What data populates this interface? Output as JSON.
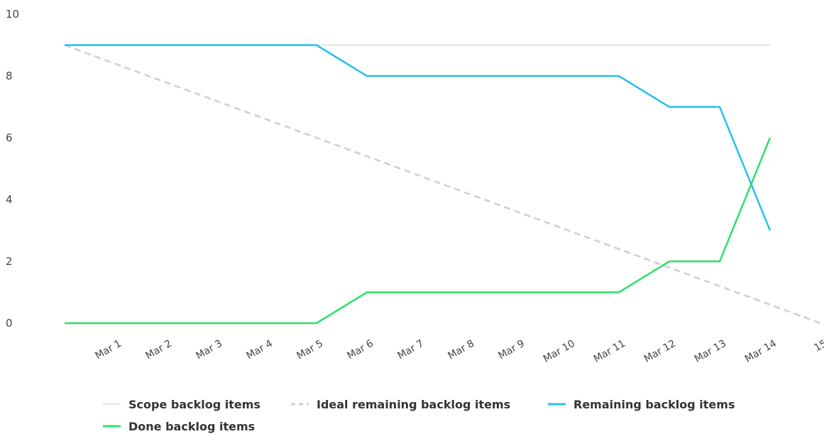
{
  "chart_data": {
    "type": "line",
    "title": "",
    "xlabel": "",
    "ylabel": "",
    "x_ticks": [
      "Mar 1",
      "Mar 2",
      "Mar 3",
      "Mar 4",
      "Mar 5",
      "Mar 6",
      "Mar 7",
      "Mar 8",
      "Mar 9",
      "Mar 10",
      "Mar 11",
      "Mar 12",
      "Mar 13",
      "Mar 14",
      "15"
    ],
    "y_ticks": [
      "0",
      "2",
      "4",
      "6",
      "8",
      "10"
    ],
    "ylim": [
      0,
      10
    ],
    "grid": false,
    "legend_position": "bottom",
    "series": [
      {
        "name": "Scope backlog items",
        "color": "#d9d9d9",
        "style": "solid",
        "x": [
          "Feb 29",
          "Mar 14"
        ],
        "values": [
          9,
          9
        ]
      },
      {
        "name": "Ideal remaining backlog items",
        "color": "#cfcfcf",
        "style": "dashed",
        "x": [
          "Feb 29",
          "Mar 15"
        ],
        "values": [
          9,
          0
        ]
      },
      {
        "name": "Remaining backlog items",
        "color": "#27c0eb",
        "style": "solid",
        "x": [
          "Feb 29",
          "Mar 1",
          "Mar 2",
          "Mar 3",
          "Mar 4",
          "Mar 5",
          "Mar 6",
          "Mar 7",
          "Mar 8",
          "Mar 9",
          "Mar 10",
          "Mar 11",
          "Mar 12",
          "Mar 13",
          "Mar 14"
        ],
        "values": [
          9,
          9,
          9,
          9,
          9,
          9,
          8,
          8,
          8,
          8,
          8,
          8,
          7,
          7,
          3
        ]
      },
      {
        "name": "Done backlog items",
        "color": "#2ee06b",
        "style": "solid",
        "x": [
          "Feb 29",
          "Mar 1",
          "Mar 2",
          "Mar 3",
          "Mar 4",
          "Mar 5",
          "Mar 6",
          "Mar 7",
          "Mar 8",
          "Mar 9",
          "Mar 10",
          "Mar 11",
          "Mar 12",
          "Mar 13",
          "Mar 14"
        ],
        "values": [
          0,
          0,
          0,
          0,
          0,
          0,
          1,
          1,
          1,
          1,
          1,
          1,
          2,
          2,
          6
        ]
      }
    ]
  }
}
